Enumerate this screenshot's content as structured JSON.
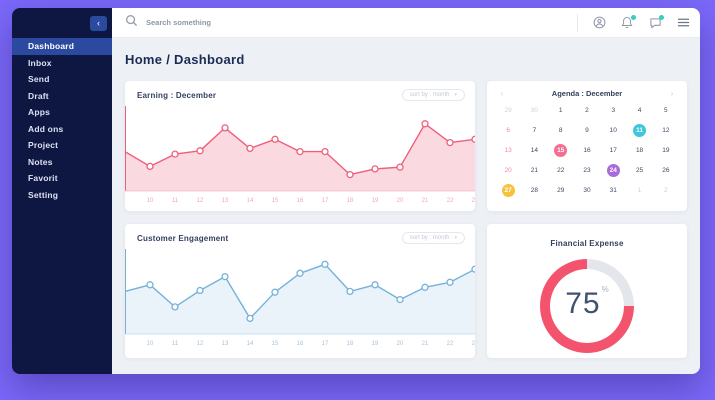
{
  "window": {
    "background": "#7b68f9",
    "content_background": "#edf0f5",
    "sidebar_background": "#0e1642",
    "active_item_color": "#2b4a9f"
  },
  "sidebar": {
    "collapse_glyph": "‹",
    "items": [
      {
        "label": "Dashboard",
        "active": true
      },
      {
        "label": "Inbox",
        "active": false
      },
      {
        "label": "Send",
        "active": false
      },
      {
        "label": "Draft",
        "active": false
      },
      {
        "label": "Apps",
        "active": false
      },
      {
        "label": "Add ons",
        "active": false
      },
      {
        "label": "Project",
        "active": false
      },
      {
        "label": "Notes",
        "active": false
      },
      {
        "label": "Favorit",
        "active": false
      },
      {
        "label": "Setting",
        "active": false
      }
    ]
  },
  "topbar": {
    "search_placeholder": "Search something",
    "badge_color": "#35cfc0",
    "icons": [
      "user-icon",
      "bell-icon",
      "chat-icon",
      "menu-icon"
    ]
  },
  "main": {
    "breadcrumb": "Home / Dashboard"
  },
  "earning": {
    "title": "Earning : December",
    "sort_label": "sort by : month",
    "sort_chevron": "▾"
  },
  "engagement": {
    "title": "Customer Engagement",
    "sort_label": "sort by : month",
    "sort_chevron": "▾"
  },
  "agenda": {
    "title": "Agenda : December",
    "prev_glyph": "‹",
    "next_glyph": "›",
    "weeks": [
      [
        {
          "d": "29",
          "muted": true,
          "sun": true
        },
        {
          "d": "30",
          "muted": true
        },
        {
          "d": "1"
        },
        {
          "d": "2"
        },
        {
          "d": "3"
        },
        {
          "d": "4"
        },
        {
          "d": "5"
        }
      ],
      [
        {
          "d": "6",
          "sun": true
        },
        {
          "d": "7"
        },
        {
          "d": "8"
        },
        {
          "d": "9"
        },
        {
          "d": "10"
        },
        {
          "d": "11",
          "badge": "#3ec6dd"
        },
        {
          "d": "12"
        }
      ],
      [
        {
          "d": "13",
          "sun": true
        },
        {
          "d": "14"
        },
        {
          "d": "15",
          "badge": "#f2708f"
        },
        {
          "d": "16"
        },
        {
          "d": "17"
        },
        {
          "d": "18"
        },
        {
          "d": "19"
        }
      ],
      [
        {
          "d": "20",
          "sun": true
        },
        {
          "d": "21"
        },
        {
          "d": "22"
        },
        {
          "d": "23"
        },
        {
          "d": "24",
          "badge": "#a96ada"
        },
        {
          "d": "25"
        },
        {
          "d": "26"
        }
      ],
      [
        {
          "d": "27",
          "sun": true,
          "badge": "#f6c23e"
        },
        {
          "d": "28"
        },
        {
          "d": "29"
        },
        {
          "d": "30"
        },
        {
          "d": "31"
        },
        {
          "d": "1",
          "muted": true
        },
        {
          "d": "2",
          "muted": true
        }
      ]
    ]
  },
  "expense": {
    "title": "Financial Expense",
    "percent": "75",
    "unit": "%"
  },
  "chart_data": [
    {
      "type": "area",
      "name": "earning-december",
      "categories": [
        "10",
        "11",
        "12",
        "13",
        "14",
        "15",
        "16",
        "17",
        "18",
        "19",
        "20",
        "21",
        "22",
        "23"
      ],
      "values": [
        48,
        30,
        45,
        49,
        77,
        52,
        63,
        48,
        48,
        20,
        27,
        29,
        82,
        59,
        63
      ],
      "lead_in_point": true,
      "ylim": [
        0,
        100
      ],
      "line_color": "#ee5f79",
      "fill_color": "#fbd9e0",
      "axis_color": "#f0b6c0",
      "label_color": "#f0a8b3"
    },
    {
      "type": "area",
      "name": "customer-engagement",
      "categories": [
        "10",
        "11",
        "12",
        "13",
        "14",
        "15",
        "16",
        "17",
        "18",
        "19",
        "20",
        "21",
        "22",
        "23"
      ],
      "values": [
        52,
        60,
        33,
        53,
        70,
        19,
        51,
        74,
        85,
        52,
        60,
        42,
        57,
        63,
        79
      ],
      "lead_in_point": true,
      "ylim": [
        0,
        100
      ],
      "line_color": "#74b2d9",
      "fill_color": "#eaf3fa",
      "axis_color": "#bcd8ec",
      "label_color": "#a9c3da"
    },
    {
      "type": "donut",
      "name": "financial-expense",
      "value": 75,
      "max": 100,
      "label": "75%",
      "color": "#f4536e",
      "track_color": "#e3e6eb"
    }
  ]
}
